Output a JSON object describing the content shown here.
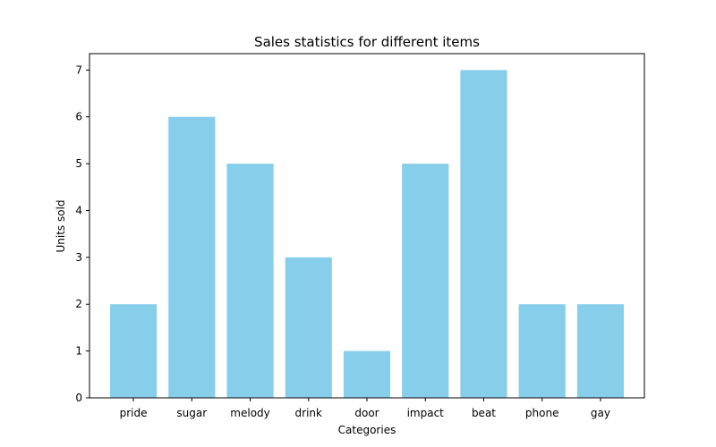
{
  "chart_data": {
    "type": "bar",
    "title": "Sales statistics for different items",
    "xlabel": "Categories",
    "ylabel": "Units sold",
    "categories": [
      "pride",
      "sugar",
      "melody",
      "drink",
      "door",
      "impact",
      "beat",
      "phone",
      "gay"
    ],
    "values": [
      2,
      6,
      5,
      3,
      1,
      5,
      7,
      2,
      2
    ],
    "ylim": [
      0,
      7.35
    ],
    "yticks": [
      0,
      1,
      2,
      3,
      4,
      5,
      6,
      7
    ],
    "grid": false,
    "bar_color": "#87ceeb"
  }
}
